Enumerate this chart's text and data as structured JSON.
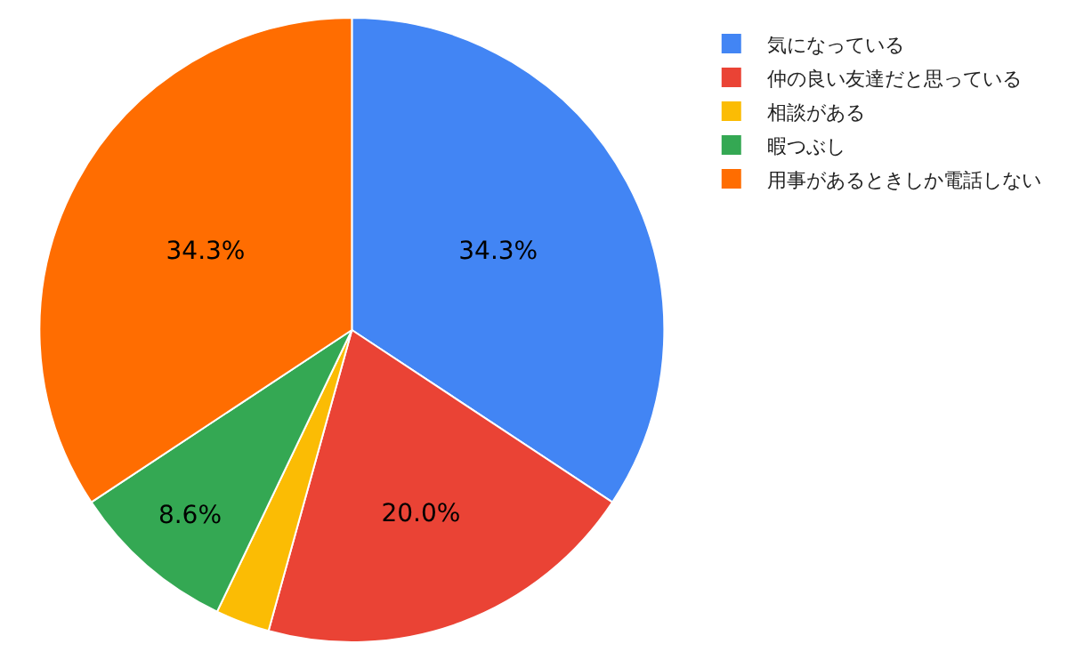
{
  "chart_data": {
    "type": "pie",
    "categories": [
      "気になっている",
      "仲の良い友達だと思っている",
      "相談がある",
      "暇つぶし",
      "用事があるときしか電話しない"
    ],
    "values": [
      34.3,
      20.0,
      2.8,
      8.6,
      34.3
    ],
    "colors": [
      "#4285f4",
      "#ea4335",
      "#fbbc04",
      "#34a853",
      "#ff6d01"
    ],
    "value_labels": [
      "34.3%",
      "20.0%",
      null,
      "8.6%",
      "34.3%"
    ],
    "legend": "top right"
  }
}
